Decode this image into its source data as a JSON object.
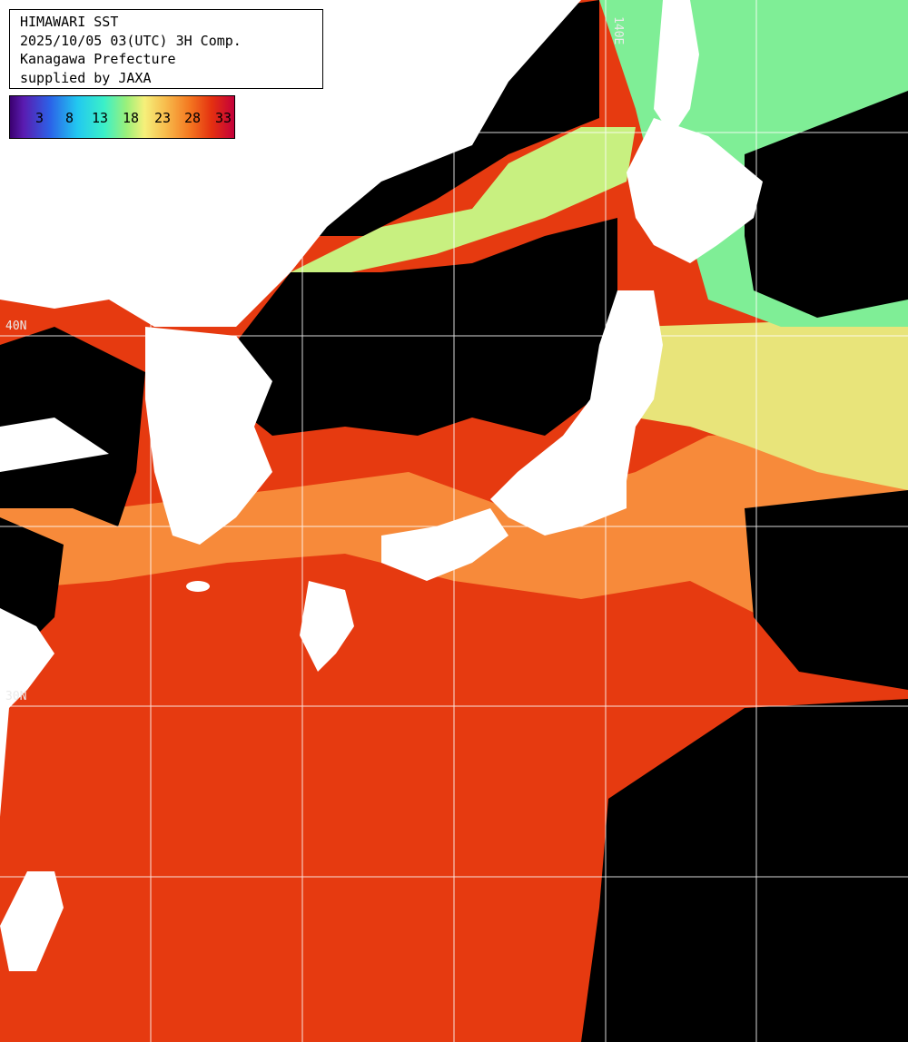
{
  "info": {
    "line1": "HIMAWARI SST",
    "line2": "2025/10/05 03(UTC) 3H Comp.",
    "line3": "Kanagawa Prefecture",
    "line4": "supplied by JAXA"
  },
  "legend": {
    "ticks": [
      "3",
      "8",
      "13",
      "18",
      "23",
      "28",
      "33"
    ],
    "colors": {
      "cold": "#3a006f",
      "mid": "#f6f07a",
      "hot": "#c4003a"
    }
  },
  "grid": {
    "lat_labels": [
      "40N",
      "30N"
    ],
    "lon_labels": [
      "140E"
    ]
  },
  "map_colors": {
    "land": "#ffffff",
    "cloud_mask": "#000000",
    "warm_sea": "#e63a10",
    "mild_sea": "#f78a3a",
    "cool_sea": "#e8e47a",
    "cold_sea": "#7fee96",
    "grid_line": "#ffffff"
  }
}
